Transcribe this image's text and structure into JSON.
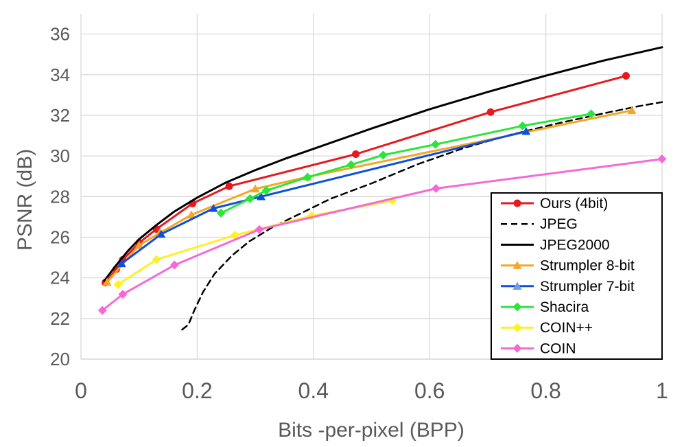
{
  "chart_data": {
    "type": "line",
    "title": "",
    "xlabel": "Bits -per-pixel (BPP)",
    "ylabel": "PSNR (dB)",
    "xlim": [
      0,
      1
    ],
    "ylim": [
      20,
      37
    ],
    "xticks": [
      0,
      0.2,
      0.4,
      0.6,
      0.8,
      1
    ],
    "xtick_labels": [
      "0",
      "0.2",
      "0.4",
      "0.6",
      "0.8",
      "1"
    ],
    "yticks": [
      20,
      22,
      24,
      26,
      28,
      30,
      32,
      34,
      36
    ],
    "ytick_labels": [
      "20",
      "22",
      "24",
      "26",
      "28",
      "30",
      "32",
      "34",
      "36"
    ],
    "grid": true,
    "legend_position": "bottom-right",
    "series": [
      {
        "name": "Ours (4bit)",
        "color": "#e8191c",
        "marker": "circle",
        "dash": "solid",
        "points": [
          [
            0.042,
            23.77
          ],
          [
            0.061,
            24.43
          ],
          [
            0.072,
            24.89
          ],
          [
            0.1,
            25.72
          ],
          [
            0.13,
            26.4
          ],
          [
            0.192,
            27.66
          ],
          [
            0.255,
            28.51
          ],
          [
            0.473,
            30.09
          ],
          [
            0.705,
            32.16
          ],
          [
            0.938,
            33.94
          ]
        ]
      },
      {
        "name": "JPEG",
        "color": "#000000",
        "marker": "none",
        "dash": "dashed",
        "points": [
          [
            0.174,
            21.45
          ],
          [
            0.185,
            21.7
          ],
          [
            0.195,
            22.4
          ],
          [
            0.21,
            23.3
          ],
          [
            0.23,
            24.2
          ],
          [
            0.26,
            25.1
          ],
          [
            0.29,
            25.8
          ],
          [
            0.33,
            26.5
          ],
          [
            0.38,
            27.2
          ],
          [
            0.43,
            27.9
          ],
          [
            0.5,
            28.65
          ],
          [
            0.58,
            29.6
          ],
          [
            0.66,
            30.4
          ],
          [
            0.74,
            31.05
          ],
          [
            0.82,
            31.6
          ],
          [
            0.9,
            32.1
          ],
          [
            0.96,
            32.45
          ],
          [
            1.0,
            32.65
          ]
        ]
      },
      {
        "name": "JPEG2000",
        "color": "#000000",
        "marker": "none",
        "dash": "solid",
        "points": [
          [
            0.04,
            23.85
          ],
          [
            0.06,
            24.6
          ],
          [
            0.08,
            25.3
          ],
          [
            0.1,
            25.9
          ],
          [
            0.13,
            26.6
          ],
          [
            0.16,
            27.25
          ],
          [
            0.2,
            27.95
          ],
          [
            0.25,
            28.7
          ],
          [
            0.3,
            29.3
          ],
          [
            0.35,
            29.85
          ],
          [
            0.4,
            30.35
          ],
          [
            0.5,
            31.35
          ],
          [
            0.6,
            32.3
          ],
          [
            0.7,
            33.15
          ],
          [
            0.8,
            33.95
          ],
          [
            0.9,
            34.7
          ],
          [
            1.0,
            35.35
          ]
        ]
      },
      {
        "name": "Strumpler 8-bit",
        "color": "#f5a623",
        "marker": "triangle",
        "dash": "solid",
        "points": [
          [
            0.045,
            23.79
          ],
          [
            0.1,
            25.6
          ],
          [
            0.135,
            26.2
          ],
          [
            0.19,
            27.1
          ],
          [
            0.3,
            28.38
          ],
          [
            0.39,
            28.97
          ],
          [
            0.948,
            32.24
          ]
        ]
      },
      {
        "name": "Strumpler 7-bit",
        "color": "#0f4fe0",
        "marker": "triangle",
        "dash": "solid",
        "legend_marker_color": "#6f9fe8",
        "points": [
          [
            0.07,
            24.7
          ],
          [
            0.138,
            26.15
          ],
          [
            0.228,
            27.42
          ],
          [
            0.31,
            28.0
          ],
          [
            0.766,
            31.21
          ]
        ]
      },
      {
        "name": "Shacira",
        "color": "#29e639",
        "marker": "diamond",
        "dash": "solid",
        "points": [
          [
            0.241,
            27.19
          ],
          [
            0.291,
            27.9
          ],
          [
            0.319,
            28.3
          ],
          [
            0.39,
            28.95
          ],
          [
            0.465,
            29.57
          ],
          [
            0.52,
            30.04
          ],
          [
            0.61,
            30.57
          ],
          [
            0.76,
            31.48
          ],
          [
            0.878,
            32.07
          ]
        ]
      },
      {
        "name": "COIN++",
        "color": "#fff023",
        "marker": "diamond",
        "dash": "solid",
        "points": [
          [
            0.064,
            23.67
          ],
          [
            0.13,
            24.9
          ],
          [
            0.265,
            26.1
          ],
          [
            0.397,
            27.05
          ],
          [
            0.536,
            27.8
          ]
        ]
      },
      {
        "name": "COIN",
        "color": "#f569d7",
        "marker": "diamond",
        "dash": "solid",
        "points": [
          [
            0.037,
            22.4
          ],
          [
            0.072,
            23.19
          ],
          [
            0.161,
            24.63
          ],
          [
            0.307,
            26.38
          ],
          [
            0.611,
            28.4
          ],
          [
            1.0,
            29.85
          ]
        ]
      }
    ]
  }
}
